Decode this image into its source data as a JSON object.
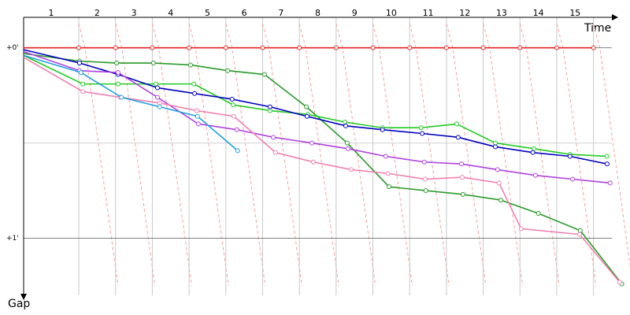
{
  "chart_data": {
    "type": "line",
    "x_label": "Time",
    "y_label": "Gap",
    "categories": [
      "1",
      "2",
      "3",
      "4",
      "5",
      "6",
      "7",
      "8",
      "9",
      "10",
      "11",
      "12",
      "13",
      "14",
      "15"
    ],
    "xlim": [
      0,
      16
    ],
    "ylim": [
      -0.16,
      1.3
    ],
    "y_inverted": true,
    "yticks": [
      {
        "value": 0,
        "label": "+0'"
      },
      {
        "value": 1,
        "label": "+1'"
      }
    ],
    "yminor": [
      0.5
    ],
    "series": [
      {
        "color": "#e82020",
        "x": [
          0,
          1.5,
          2.5,
          3.5,
          4.5,
          5.5,
          6.5,
          7.5,
          8.5,
          9.5,
          10.5,
          11.5,
          12.5,
          13.5,
          14.5,
          15.5
        ],
        "values": [
          0,
          0,
          0,
          0,
          0,
          0,
          0,
          0,
          0,
          0,
          0,
          0,
          0,
          0,
          0,
          0
        ]
      },
      {
        "color": "#2a9a2a",
        "x": [
          0,
          1.52,
          2.53,
          3.53,
          4.54,
          5.55,
          6.55,
          7.69,
          8.8,
          9.94,
          10.94,
          11.95,
          12.98,
          14.0,
          15.14,
          16.27
        ],
        "values": [
          0.03,
          0.07,
          0.08,
          0.08,
          0.09,
          0.12,
          0.14,
          0.31,
          0.5,
          0.73,
          0.75,
          0.77,
          0.8,
          0.87,
          0.96,
          1.24
        ]
      },
      {
        "color": "#22cc22",
        "x": [
          0,
          1.61,
          2.57,
          3.6,
          4.63,
          5.7,
          6.7,
          7.73,
          8.74,
          9.76,
          10.81,
          11.78,
          12.83,
          13.88,
          14.86,
          15.87
        ],
        "values": [
          0.04,
          0.19,
          0.19,
          0.19,
          0.19,
          0.3,
          0.33,
          0.35,
          0.39,
          0.42,
          0.42,
          0.4,
          0.5,
          0.53,
          0.56,
          0.57
        ]
      },
      {
        "color": "#0000c0",
        "x": [
          0,
          1.52,
          2.57,
          3.64,
          4.65,
          5.67,
          6.7,
          7.71,
          8.76,
          9.76,
          10.84,
          11.82,
          12.83,
          13.85,
          14.86,
          15.87
        ],
        "values": [
          0.01,
          0.08,
          0.14,
          0.21,
          0.24,
          0.27,
          0.31,
          0.36,
          0.41,
          0.43,
          0.45,
          0.47,
          0.52,
          0.55,
          0.57,
          0.61
        ]
      },
      {
        "color": "#b040e0",
        "x": [
          0,
          1.52,
          2.57,
          3.64,
          4.75,
          5.8,
          6.79,
          7.84,
          8.82,
          9.85,
          10.9,
          11.91,
          12.89,
          13.92,
          14.93,
          15.95
        ],
        "values": [
          0.02,
          0.12,
          0.13,
          0.26,
          0.4,
          0.43,
          0.47,
          0.5,
          0.53,
          0.57,
          0.6,
          0.61,
          0.64,
          0.67,
          0.69,
          0.71
        ]
      },
      {
        "color": "#f080b0",
        "x": [
          0,
          1.61,
          2.63,
          3.7,
          4.71,
          5.72,
          6.85,
          7.88,
          8.91,
          9.91,
          10.92,
          11.93,
          12.93,
          13.53,
          15.12,
          16.21
        ],
        "values": [
          0.05,
          0.23,
          0.26,
          0.29,
          0.33,
          0.36,
          0.55,
          0.6,
          0.64,
          0.66,
          0.69,
          0.68,
          0.71,
          0.95,
          0.98,
          1.23
        ]
      },
      {
        "color": "#20a0e0",
        "x": [
          0,
          1.56,
          2.66,
          3.7,
          4.73,
          5.82
        ],
        "values": [
          0.04,
          0.13,
          0.26,
          0.31,
          0.36,
          0.54
        ]
      }
    ]
  }
}
